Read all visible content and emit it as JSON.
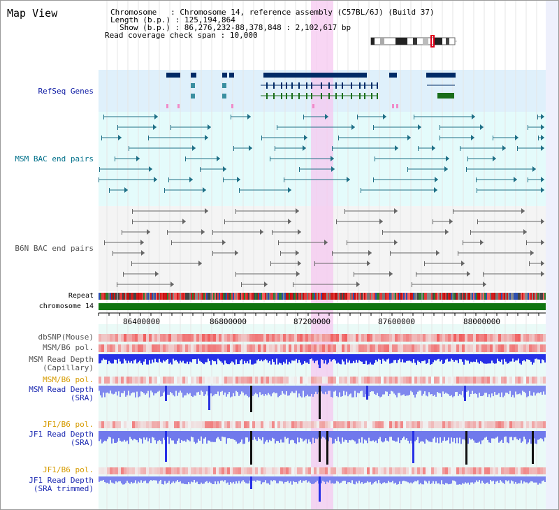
{
  "header": {
    "title": "Map View",
    "chromosome_key": "Chromosome",
    "chromosome_value": "Chromosome 14, reference assembly (C57BL/6J) (Build 37)",
    "length_key": "Length (b.p.)",
    "length_value": "125,194,864",
    "show_key": "Show (b.p.)",
    "show_value": "86,276,232-88,378,848 : 2,102,617 bp",
    "span_key": "Read coverage check span",
    "span_value": "10,000"
  },
  "tracks": {
    "refseq": "RefSeq Genes",
    "msm_bac": "MSM BAC end pairs",
    "b6n_bac": "B6N BAC end pairs",
    "repeat": "Repeat",
    "chrom": "chromosome 14",
    "dbsnp": "dbSNP(Mouse)",
    "msm_b6_pol_1": "MSM/B6 pol.",
    "msm_depth_cap_1": "MSM Read Depth",
    "msm_depth_cap_2": "(Capillary)",
    "msm_b6_pol_2": "MSM/B6 pol.",
    "msm_depth_sra_1": "MSM Read Depth",
    "msm_depth_sra_2": "(SRA)",
    "jf1_b6_pol_1": "JF1/B6 pol.",
    "jf1_depth_sra_1": "JF1 Read Depth",
    "jf1_depth_sra_2": "(SRA)",
    "jf1_b6_pol_2": "JF1/B6 pol.",
    "jf1_depth_trim_1": "JF1 Read Depth",
    "jf1_depth_trim_2": "(SRA trimmed)"
  },
  "axis": {
    "ticks": [
      "86400000",
      "86800000",
      "87200000",
      "87600000",
      "88000000"
    ]
  },
  "colors": {
    "navy_label": "#0c1aa3",
    "teal_label": "#00708a",
    "orange_label": "#d69b00",
    "gene": "#002a66",
    "gene_green": "#1a6d1a",
    "msm_bac": "#1e6f86",
    "b6n_bac": "#666666",
    "chromosome": "#117511",
    "highlight": "#f6c8f0",
    "depth_blue": "#2630e6"
  }
}
